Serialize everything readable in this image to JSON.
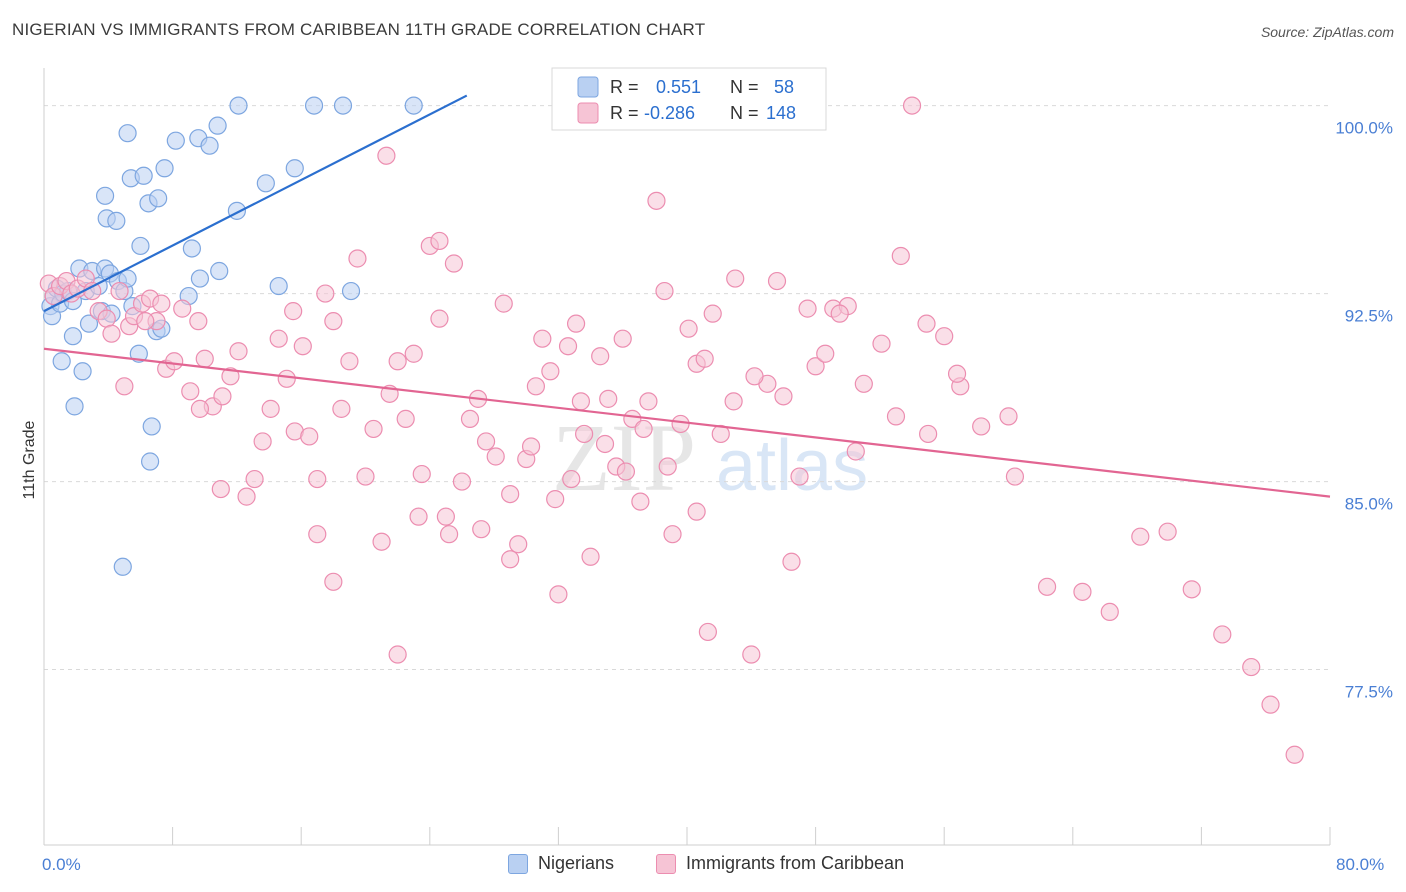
{
  "title": "NIGERIAN VS IMMIGRANTS FROM CARIBBEAN 11TH GRADE CORRELATION CHART",
  "source": "Source: ZipAtlas.com",
  "watermark": {
    "zip": "ZIP",
    "atlas": "atlas"
  },
  "legend_box": {
    "row1": {
      "r_label": "R =",
      "r_value": "0.551",
      "n_label": "N =",
      "n_value": "58"
    },
    "row2": {
      "r_label": "R =",
      "r_value": "-0.286",
      "n_label": "N =",
      "n_value": "148"
    }
  },
  "colors": {
    "blue_fill": "#b9d0f2",
    "blue_stroke": "#7da6e0",
    "blue_line": "#2b6fcf",
    "pink_fill": "#f6c4d5",
    "pink_stroke": "#ec8db0",
    "pink_line": "#e26592",
    "tick_text": "#4a7fd4",
    "grid": "#d9d9d9"
  },
  "chart_data": {
    "type": "scatter",
    "title": "NIGERIAN VS IMMIGRANTS FROM CARIBBEAN 11TH GRADE CORRELATION CHART",
    "xlabel": "",
    "ylabel": "11th Grade",
    "xlim": [
      0,
      80
    ],
    "ylim": [
      70.5,
      101.5
    ],
    "x_tick_labels": [
      "0.0%",
      "80.0%"
    ],
    "y_ticks": [
      77.5,
      85.0,
      92.5,
      100.0
    ],
    "y_tick_labels": [
      "77.5%",
      "85.0%",
      "92.5%",
      "100.0%"
    ],
    "grid": true,
    "legend_position": "bottom",
    "series": [
      {
        "name": "Nigerians",
        "color": "#7da6e0",
        "trendline": {
          "x": [
            0,
            26.3
          ],
          "y": [
            91.8,
            100.4
          ]
        },
        "points": [
          [
            0.4,
            92.0
          ],
          [
            0.6,
            92.4
          ],
          [
            0.8,
            92.7
          ],
          [
            0.5,
            91.6
          ],
          [
            1.0,
            92.1
          ],
          [
            1.2,
            92.5
          ],
          [
            1.5,
            92.6
          ],
          [
            1.8,
            92.2
          ],
          [
            2.2,
            93.5
          ],
          [
            2.6,
            92.6
          ],
          [
            3.0,
            93.4
          ],
          [
            3.4,
            92.8
          ],
          [
            3.8,
            93.5
          ],
          [
            4.1,
            93.3
          ],
          [
            4.6,
            93.0
          ],
          [
            5.0,
            92.6
          ],
          [
            5.2,
            93.1
          ],
          [
            2.8,
            91.3
          ],
          [
            3.6,
            91.8
          ],
          [
            4.2,
            91.7
          ],
          [
            1.8,
            90.8
          ],
          [
            1.1,
            89.8
          ],
          [
            2.4,
            89.4
          ],
          [
            5.9,
            90.1
          ],
          [
            7.0,
            91.0
          ],
          [
            1.9,
            88.0
          ],
          [
            6.7,
            87.2
          ],
          [
            6.6,
            85.8
          ],
          [
            4.9,
            81.6
          ],
          [
            3.8,
            96.4
          ],
          [
            3.9,
            95.5
          ],
          [
            4.5,
            95.4
          ],
          [
            5.4,
            97.1
          ],
          [
            6.2,
            97.2
          ],
          [
            6.5,
            96.1
          ],
          [
            7.1,
            96.3
          ],
          [
            7.5,
            97.5
          ],
          [
            6.0,
            94.4
          ],
          [
            9.2,
            94.3
          ],
          [
            9.6,
            98.7
          ],
          [
            10.3,
            98.4
          ],
          [
            10.8,
            99.2
          ],
          [
            8.2,
            98.6
          ],
          [
            5.2,
            98.9
          ],
          [
            12.1,
            100.0
          ],
          [
            16.8,
            100.0
          ],
          [
            18.6,
            100.0
          ],
          [
            23.0,
            100.0
          ],
          [
            12.0,
            95.8
          ],
          [
            13.8,
            96.9
          ],
          [
            15.6,
            97.5
          ],
          [
            9.7,
            93.1
          ],
          [
            10.9,
            93.4
          ],
          [
            9.0,
            92.4
          ],
          [
            14.6,
            92.8
          ],
          [
            19.1,
            92.6
          ],
          [
            5.5,
            92.0
          ],
          [
            7.3,
            91.1
          ]
        ]
      },
      {
        "name": "Immigrants from Caribbean",
        "color": "#ec8db0",
        "trendline": {
          "x": [
            0,
            80
          ],
          "y": [
            90.3,
            84.4
          ]
        },
        "points": [
          [
            0.3,
            92.9
          ],
          [
            0.6,
            92.4
          ],
          [
            1.0,
            92.8
          ],
          [
            1.4,
            93.0
          ],
          [
            1.7,
            92.5
          ],
          [
            2.1,
            92.7
          ],
          [
            2.6,
            93.1
          ],
          [
            3.0,
            92.6
          ],
          [
            3.4,
            91.8
          ],
          [
            3.9,
            91.5
          ],
          [
            4.2,
            90.9
          ],
          [
            4.7,
            92.6
          ],
          [
            5.3,
            91.2
          ],
          [
            5.6,
            91.6
          ],
          [
            6.1,
            92.1
          ],
          [
            6.6,
            92.3
          ],
          [
            7.0,
            91.4
          ],
          [
            7.6,
            89.5
          ],
          [
            8.1,
            89.8
          ],
          [
            8.6,
            91.9
          ],
          [
            9.1,
            88.6
          ],
          [
            9.6,
            91.4
          ],
          [
            10.0,
            89.9
          ],
          [
            10.5,
            88.0
          ],
          [
            11.1,
            88.4
          ],
          [
            11.6,
            89.2
          ],
          [
            12.1,
            90.2
          ],
          [
            12.6,
            84.4
          ],
          [
            13.1,
            85.1
          ],
          [
            13.6,
            86.6
          ],
          [
            14.1,
            87.9
          ],
          [
            14.6,
            90.7
          ],
          [
            15.1,
            89.1
          ],
          [
            15.6,
            87.0
          ],
          [
            16.1,
            90.4
          ],
          [
            16.5,
            86.8
          ],
          [
            17.0,
            85.1
          ],
          [
            17.5,
            92.5
          ],
          [
            18.0,
            91.4
          ],
          [
            18.5,
            87.9
          ],
          [
            19.0,
            89.8
          ],
          [
            19.5,
            93.9
          ],
          [
            20.0,
            85.2
          ],
          [
            20.5,
            87.1
          ],
          [
            21.0,
            82.6
          ],
          [
            21.5,
            88.5
          ],
          [
            22.0,
            89.8
          ],
          [
            22.5,
            87.5
          ],
          [
            23.0,
            90.1
          ],
          [
            23.5,
            85.3
          ],
          [
            24.0,
            94.4
          ],
          [
            24.6,
            91.5
          ],
          [
            25.0,
            83.6
          ],
          [
            25.5,
            93.7
          ],
          [
            26.0,
            85.0
          ],
          [
            26.5,
            87.5
          ],
          [
            27.0,
            88.3
          ],
          [
            27.5,
            86.6
          ],
          [
            28.1,
            86.0
          ],
          [
            28.6,
            92.1
          ],
          [
            29.0,
            84.5
          ],
          [
            29.5,
            82.5
          ],
          [
            30.0,
            85.9
          ],
          [
            30.6,
            88.8
          ],
          [
            31.0,
            90.7
          ],
          [
            31.5,
            89.4
          ],
          [
            32.0,
            80.5
          ],
          [
            32.6,
            90.4
          ],
          [
            33.1,
            91.3
          ],
          [
            33.6,
            86.9
          ],
          [
            34.0,
            82.0
          ],
          [
            34.6,
            90.0
          ],
          [
            35.1,
            88.3
          ],
          [
            35.6,
            85.6
          ],
          [
            36.0,
            90.7
          ],
          [
            36.6,
            87.5
          ],
          [
            37.1,
            84.2
          ],
          [
            37.6,
            88.2
          ],
          [
            38.1,
            96.2
          ],
          [
            38.6,
            92.6
          ],
          [
            39.1,
            82.9
          ],
          [
            39.6,
            87.3
          ],
          [
            40.1,
            91.1
          ],
          [
            40.6,
            89.7
          ],
          [
            41.1,
            89.9
          ],
          [
            41.6,
            91.7
          ],
          [
            42.1,
            86.9
          ],
          [
            43.0,
            93.1
          ],
          [
            44.0,
            78.1
          ],
          [
            45.0,
            88.9
          ],
          [
            46.0,
            88.4
          ],
          [
            46.5,
            81.8
          ],
          [
            47.0,
            85.2
          ],
          [
            47.5,
            91.9
          ],
          [
            48.0,
            89.6
          ],
          [
            48.6,
            90.1
          ],
          [
            49.1,
            91.9
          ],
          [
            50.0,
            92.0
          ],
          [
            50.5,
            86.2
          ],
          [
            51.0,
            88.9
          ],
          [
            53.0,
            87.6
          ],
          [
            55.0,
            86.9
          ],
          [
            57.0,
            88.8
          ],
          [
            60.0,
            87.6
          ],
          [
            56.0,
            90.8
          ],
          [
            38.0,
            100.0
          ],
          [
            54.0,
            100.0
          ],
          [
            21.3,
            98.0
          ],
          [
            24.6,
            94.6
          ],
          [
            9.7,
            87.9
          ],
          [
            5.0,
            88.8
          ],
          [
            6.3,
            91.4
          ],
          [
            7.3,
            92.1
          ],
          [
            11.0,
            84.7
          ],
          [
            15.5,
            91.8
          ],
          [
            17.0,
            82.9
          ],
          [
            18.0,
            81.0
          ],
          [
            22.0,
            78.1
          ],
          [
            23.3,
            83.6
          ],
          [
            25.2,
            82.9
          ],
          [
            27.2,
            83.1
          ],
          [
            29.0,
            81.9
          ],
          [
            30.3,
            86.4
          ],
          [
            31.8,
            84.3
          ],
          [
            32.8,
            85.1
          ],
          [
            33.4,
            88.2
          ],
          [
            34.9,
            86.5
          ],
          [
            36.2,
            85.4
          ],
          [
            37.3,
            87.1
          ],
          [
            38.8,
            85.6
          ],
          [
            40.6,
            83.8
          ],
          [
            41.3,
            79.0
          ],
          [
            42.9,
            88.2
          ],
          [
            44.2,
            89.2
          ],
          [
            45.6,
            93.0
          ],
          [
            49.5,
            91.7
          ],
          [
            52.1,
            90.5
          ],
          [
            53.3,
            94.0
          ],
          [
            54.9,
            91.3
          ],
          [
            56.8,
            89.3
          ],
          [
            58.3,
            87.2
          ],
          [
            60.4,
            85.2
          ],
          [
            62.4,
            80.8
          ],
          [
            64.6,
            80.6
          ],
          [
            66.3,
            79.8
          ],
          [
            68.2,
            82.8
          ],
          [
            69.9,
            83.0
          ],
          [
            71.4,
            80.7
          ],
          [
            73.3,
            78.9
          ],
          [
            75.1,
            77.6
          ],
          [
            76.3,
            76.1
          ],
          [
            77.8,
            74.1
          ]
        ]
      }
    ]
  },
  "bottom_legend": {
    "item1": "Nigerians",
    "item2": "Immigrants from Caribbean"
  }
}
